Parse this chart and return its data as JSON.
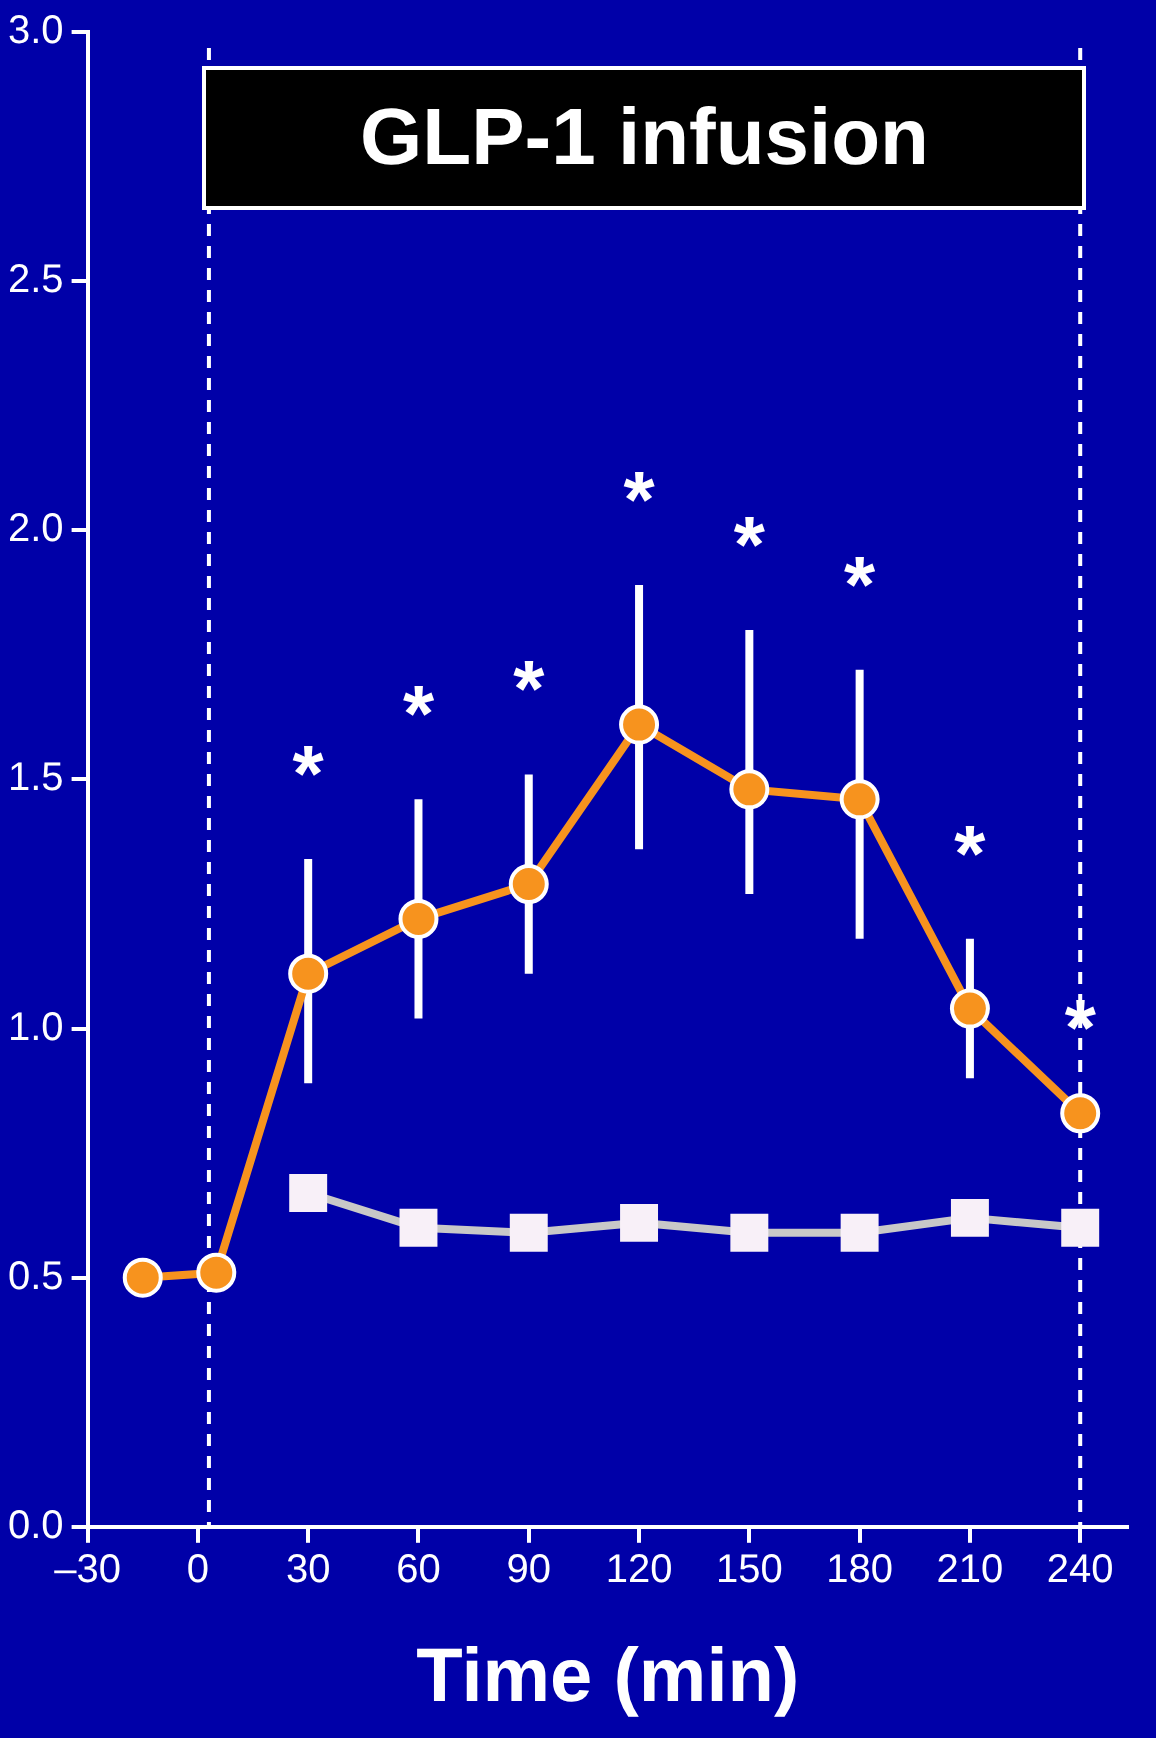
{
  "chart_data": {
    "type": "line",
    "title": "GLP-1 infusion",
    "xlabel": "Time (min)",
    "xlim": [
      -30,
      253
    ],
    "xticks": [
      {
        "value": -30,
        "label": "–30"
      },
      0,
      30,
      60,
      90,
      120,
      150,
      180,
      210,
      240
    ],
    "ylim": [
      0,
      3
    ],
    "yticks": [
      {
        "value": 0,
        "label": "0.0"
      },
      0.5,
      {
        "value": 1,
        "label": "1.0"
      },
      1.5,
      {
        "value": 2,
        "label": "2.0"
      },
      2.5,
      {
        "value": 3,
        "label": "3.0"
      }
    ],
    "grid": false,
    "legend": false,
    "line_style": "solid",
    "series": [
      {
        "color": "#c8c8c8",
        "marker": "square",
        "x": [
          30,
          60,
          90,
          120,
          150,
          180,
          210,
          240
        ],
        "values": [
          0.67,
          0.6,
          0.59,
          0.61,
          0.59,
          0.59,
          0.62,
          0.6
        ]
      },
      {
        "color": "#f7931e",
        "marker": "circle",
        "x": [
          -15,
          5,
          30,
          60,
          90,
          120,
          150,
          180,
          210,
          240
        ],
        "values": [
          0.5,
          0.51,
          1.11,
          1.22,
          1.29,
          1.61,
          1.48,
          1.46,
          1.04,
          0.83
        ],
        "errors": [
          null,
          null,
          [
            0.89,
            1.34
          ],
          [
            1.02,
            1.46
          ],
          [
            1.11,
            1.51
          ],
          [
            1.36,
            1.89
          ],
          [
            1.27,
            1.8
          ],
          [
            1.18,
            1.72
          ],
          [
            0.9,
            1.18
          ],
          null
        ]
      }
    ],
    "ref_lines": [
      {
        "axis": "x",
        "value": 3,
        "color": "#ffffff",
        "line_style": "dashed"
      },
      {
        "axis": "x",
        "value": 240,
        "color": "#ffffff",
        "line_style": "dashed"
      }
    ],
    "annotations": [
      {
        "text": "*",
        "x": 30,
        "y": 1.34
      },
      {
        "text": "*",
        "x": 60,
        "y": 1.46
      },
      {
        "text": "*",
        "x": 90,
        "y": 1.51
      },
      {
        "text": "*",
        "x": 120,
        "y": 1.89
      },
      {
        "text": "*",
        "x": 150,
        "y": 1.8
      },
      {
        "text": "*",
        "x": 180,
        "y": 1.72
      },
      {
        "text": "*",
        "x": 210,
        "y": 1.18
      },
      {
        "text": "*",
        "x": 240,
        "y": 0.83
      }
    ]
  }
}
